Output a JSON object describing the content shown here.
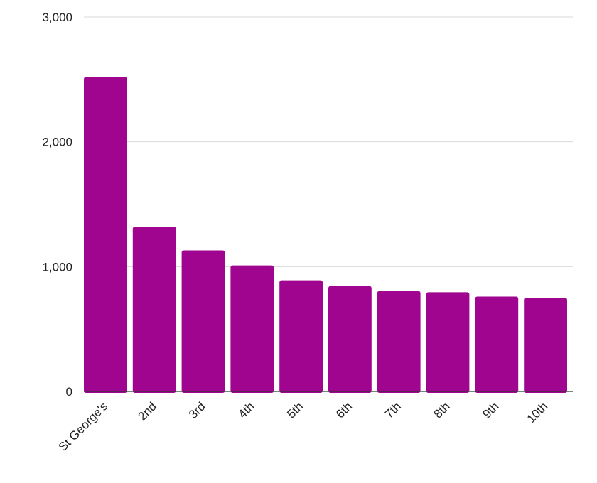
{
  "chart_data": {
    "type": "bar",
    "title": "",
    "xlabel": "",
    "ylabel": "",
    "categories": [
      "St George's",
      "2nd",
      "3rd",
      "4th",
      "5th",
      "6th",
      "7th",
      "8th",
      "9th",
      "10th"
    ],
    "values": [
      2520,
      1320,
      1130,
      1010,
      890,
      845,
      805,
      795,
      760,
      750
    ],
    "ylim": [
      0,
      3000
    ],
    "yticks": [
      0,
      1000,
      2000,
      3000
    ],
    "ytick_labels": [
      "0",
      "1,000",
      "2,000",
      "3,000"
    ],
    "grid": true,
    "legend": "none",
    "bar_color": "#a0058f"
  }
}
